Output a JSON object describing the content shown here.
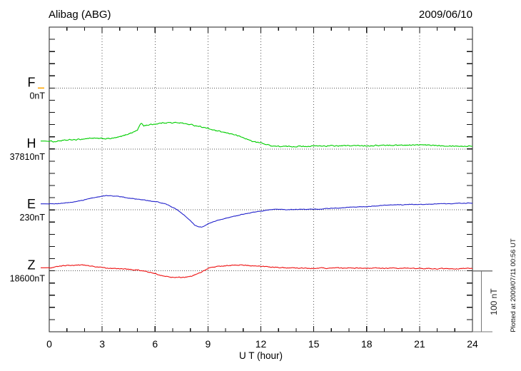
{
  "header": {
    "title": "Alibag (ABG)",
    "date": "2009/06/10"
  },
  "x_axis": {
    "label": "U T (hour)",
    "tick_labels": [
      "0",
      "3",
      "6",
      "9",
      "12",
      "15",
      "18",
      "21",
      "24"
    ],
    "hours_range": [
      0,
      24
    ],
    "major_step_h": 3,
    "minor_step_h": 1
  },
  "y_axis": {
    "minor_tick_nT": 20,
    "total_span_nT": 500,
    "grid": "dotted baselines per component"
  },
  "scale_bar": {
    "label": "100 nT",
    "span_nT": 100
  },
  "plotted_note": "Plotted at 2009/07/11 00:56 UT",
  "components": [
    {
      "id": "F",
      "label": "F",
      "baseline_label": "0nT",
      "color": "#FFA500",
      "has_trace": false
    },
    {
      "id": "H",
      "label": "H",
      "baseline_label": "37810nT",
      "color": "#00CE00",
      "has_trace": true
    },
    {
      "id": "E",
      "label": "E",
      "baseline_label": "230nT",
      "color": "#2323CC",
      "has_trace": true
    },
    {
      "id": "Z",
      "label": "Z",
      "baseline_label": "18600nT",
      "color": "#EE1111",
      "has_trace": true
    }
  ],
  "chart_data": {
    "type": "line",
    "title": "Alibag (ABG) magnetogram 2009/06/10",
    "xlabel": "U T (hour)",
    "x_range_hours": [
      0,
      24
    ],
    "x_gridlines_hours": [
      3,
      6,
      9,
      12,
      15,
      18,
      21
    ],
    "y_unit": "nT offset from component baseline",
    "legend_position": "left margin component labels",
    "notes": "F channel shows no trace, only its dotted baseline labeled 0nT; dotted horizontal lines mark each component baseline; right-hand bracket shows 100 nT scale",
    "series": [
      {
        "name": "H",
        "baseline_nT": 37810,
        "color": "#00CE00",
        "points": [
          [
            0,
            13
          ],
          [
            0.3,
            12
          ],
          [
            0.6,
            13.5
          ],
          [
            0.9,
            14
          ],
          [
            1.2,
            15
          ],
          [
            1.5,
            15
          ],
          [
            1.8,
            16
          ],
          [
            2.1,
            17
          ],
          [
            2.4,
            18
          ],
          [
            2.7,
            17
          ],
          [
            3,
            17
          ],
          [
            3.3,
            17
          ],
          [
            3.6,
            17.5
          ],
          [
            3.9,
            19
          ],
          [
            4.2,
            21.5
          ],
          [
            4.5,
            25
          ],
          [
            4.8,
            28
          ],
          [
            5,
            31
          ],
          [
            5.15,
            40
          ],
          [
            5.25,
            42
          ],
          [
            5.35,
            38
          ],
          [
            5.5,
            39
          ],
          [
            5.75,
            40
          ],
          [
            6,
            41
          ],
          [
            6.25,
            42
          ],
          [
            6.5,
            43
          ],
          [
            6.75,
            43.5
          ],
          [
            7,
            42.5
          ],
          [
            7.25,
            43.5
          ],
          [
            7.5,
            43
          ],
          [
            7.75,
            41
          ],
          [
            8,
            40
          ],
          [
            8.25,
            38.5
          ],
          [
            8.5,
            37.5
          ],
          [
            8.75,
            35.5
          ],
          [
            9,
            33.5
          ],
          [
            9.25,
            31.5
          ],
          [
            9.5,
            29.5
          ],
          [
            9.75,
            28
          ],
          [
            10,
            26.5
          ],
          [
            10.25,
            25.5
          ],
          [
            10.5,
            23.5
          ],
          [
            10.75,
            21
          ],
          [
            11,
            18.5
          ],
          [
            11.25,
            15.5
          ],
          [
            11.5,
            13
          ],
          [
            11.75,
            11
          ],
          [
            12,
            10
          ],
          [
            12.25,
            8
          ],
          [
            12.5,
            6
          ],
          [
            12.75,
            4.8
          ],
          [
            13,
            4.2
          ],
          [
            13.5,
            4
          ],
          [
            14,
            4.3
          ],
          [
            14.5,
            4.5
          ],
          [
            15,
            4.8
          ],
          [
            16,
            5
          ],
          [
            17,
            5.3
          ],
          [
            18,
            5.5
          ],
          [
            19,
            6
          ],
          [
            20,
            6.3
          ],
          [
            21,
            6.5
          ],
          [
            22,
            6
          ],
          [
            23,
            5
          ],
          [
            23.5,
            4.5
          ],
          [
            24,
            5
          ]
        ]
      },
      {
        "name": "E",
        "baseline_nT": 230,
        "color": "#2323CC",
        "points": [
          [
            0,
            10
          ],
          [
            0.5,
            10.5
          ],
          [
            1,
            11.5
          ],
          [
            1.5,
            13.5
          ],
          [
            2,
            16.5
          ],
          [
            2.5,
            20
          ],
          [
            3,
            22.5
          ],
          [
            3.3,
            23.5
          ],
          [
            3.6,
            23
          ],
          [
            3.9,
            22
          ],
          [
            4.2,
            21
          ],
          [
            4.5,
            19.5
          ],
          [
            5,
            17.5
          ],
          [
            5.5,
            15.5
          ],
          [
            6,
            13.5
          ],
          [
            6.3,
            12
          ],
          [
            6.6,
            10
          ],
          [
            6.9,
            6
          ],
          [
            7.2,
            1
          ],
          [
            7.5,
            -5
          ],
          [
            7.75,
            -11
          ],
          [
            8,
            -18
          ],
          [
            8.25,
            -25
          ],
          [
            8.5,
            -28.5
          ],
          [
            8.75,
            -27.5
          ],
          [
            9,
            -22.5
          ],
          [
            9.25,
            -20
          ],
          [
            9.5,
            -17.5
          ],
          [
            9.75,
            -15.5
          ],
          [
            10,
            -13.5
          ],
          [
            10.5,
            -10.5
          ],
          [
            11,
            -7
          ],
          [
            11.5,
            -4.5
          ],
          [
            12,
            -2
          ],
          [
            12.3,
            -0.5
          ],
          [
            12.6,
            0.5
          ],
          [
            13,
            0.8
          ],
          [
            13.5,
            0.5
          ],
          [
            14,
            0.8
          ],
          [
            14.5,
            0.8
          ],
          [
            15,
            1
          ],
          [
            15.5,
            1.5
          ],
          [
            16,
            2.5
          ],
          [
            16.5,
            3.5
          ],
          [
            17,
            4.5
          ],
          [
            17.5,
            5
          ],
          [
            18,
            5.5
          ],
          [
            18.5,
            6.5
          ],
          [
            19,
            7.5
          ],
          [
            19.5,
            8
          ],
          [
            20,
            8.5
          ],
          [
            20.5,
            9
          ],
          [
            21,
            9
          ],
          [
            21.5,
            9.5
          ],
          [
            22,
            10
          ],
          [
            22.5,
            10
          ],
          [
            23,
            10.5
          ],
          [
            23.5,
            11
          ],
          [
            24,
            11.5
          ]
        ]
      },
      {
        "name": "Z",
        "baseline_nT": 18600,
        "color": "#EE1111",
        "points": [
          [
            0,
            5
          ],
          [
            0.5,
            7
          ],
          [
            1,
            9
          ],
          [
            1.5,
            9.5
          ],
          [
            2,
            9
          ],
          [
            2.5,
            7.5
          ],
          [
            3,
            5
          ],
          [
            3.5,
            4
          ],
          [
            4,
            3.5
          ],
          [
            4.5,
            2.5
          ],
          [
            5,
            1.5
          ],
          [
            5.4,
            0
          ],
          [
            5.8,
            -3
          ],
          [
            6.2,
            -6
          ],
          [
            6.6,
            -9
          ],
          [
            7,
            -10.5
          ],
          [
            7.4,
            -11
          ],
          [
            7.8,
            -10.5
          ],
          [
            8.1,
            -8.5
          ],
          [
            8.4,
            -5
          ],
          [
            8.7,
            -1
          ],
          [
            9,
            4
          ],
          [
            9.3,
            6.5
          ],
          [
            9.6,
            7.5
          ],
          [
            10,
            8.5
          ],
          [
            10.5,
            9
          ],
          [
            11,
            9.5
          ],
          [
            11.3,
            9
          ],
          [
            11.6,
            8.5
          ],
          [
            12,
            7.5
          ],
          [
            12.5,
            6.5
          ],
          [
            13,
            5.5
          ],
          [
            13.5,
            5
          ],
          [
            14,
            4.5
          ],
          [
            14.5,
            4.5
          ],
          [
            15,
            4
          ],
          [
            15.5,
            4.5
          ],
          [
            16,
            4
          ],
          [
            16.5,
            4.5
          ],
          [
            17,
            4
          ],
          [
            17.5,
            4.5
          ],
          [
            18,
            4
          ],
          [
            18.5,
            4.2
          ],
          [
            19,
            4
          ],
          [
            19.5,
            4.2
          ],
          [
            20,
            4
          ],
          [
            20.5,
            3.8
          ],
          [
            21,
            4
          ],
          [
            21.5,
            3.8
          ],
          [
            22,
            3.5
          ],
          [
            22.5,
            3.6
          ],
          [
            23,
            3.5
          ],
          [
            23.5,
            3.8
          ],
          [
            24,
            4
          ]
        ]
      }
    ]
  }
}
